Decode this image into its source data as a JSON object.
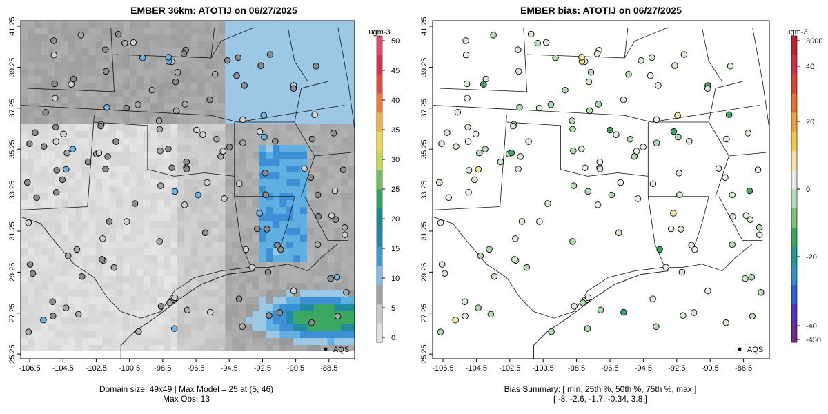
{
  "left_panel": {
    "title": "EMBER 36km: ATOTIJ on 06/27/2025",
    "units": "ugm-3",
    "colorbar_labels": [
      "50",
      "45",
      "40",
      "35",
      "30",
      "25",
      "20",
      "15",
      "10",
      "5",
      "0"
    ],
    "caption_line1": "Domain size: 49x49 | Max Model = 25 at (5, 46)",
    "caption_line2": "Max Obs: 13",
    "legend_label": "AQS"
  },
  "right_panel": {
    "title": "EMBER bias: ATOTIJ on 06/27/2025",
    "units": "ugm-3",
    "colorbar_labels": [
      "3000",
      "40",
      "20",
      "0",
      "-20",
      "-40",
      "-450"
    ],
    "caption_line1": "Bias Summary: [ min, 25th %, 50th %, 75th %, max ]",
    "caption_line2": "[ -8,   -2.6,   -1.7,   -0.34,   3.8 ]",
    "legend_label": "AQS"
  },
  "axes": {
    "lon_ticks": [
      "-106.5",
      "-104.5",
      "-102.5",
      "-100.5",
      "-98.5",
      "-96.5",
      "-94.5",
      "-92.5",
      "-90.5",
      "-88.5"
    ],
    "lat_ticks": [
      "41.25",
      "39.25",
      "37.25",
      "35.25",
      "33.25",
      "31.25",
      "29.25",
      "27.25",
      "25.25"
    ]
  },
  "colors": {
    "frame": "#000000",
    "obs_outline": "#000000",
    "model_peak": "#3aa860",
    "model_blue": "#5fb0e0",
    "bias_zero": "#f0f0f0",
    "bias_green": "#b0dcb0"
  }
}
